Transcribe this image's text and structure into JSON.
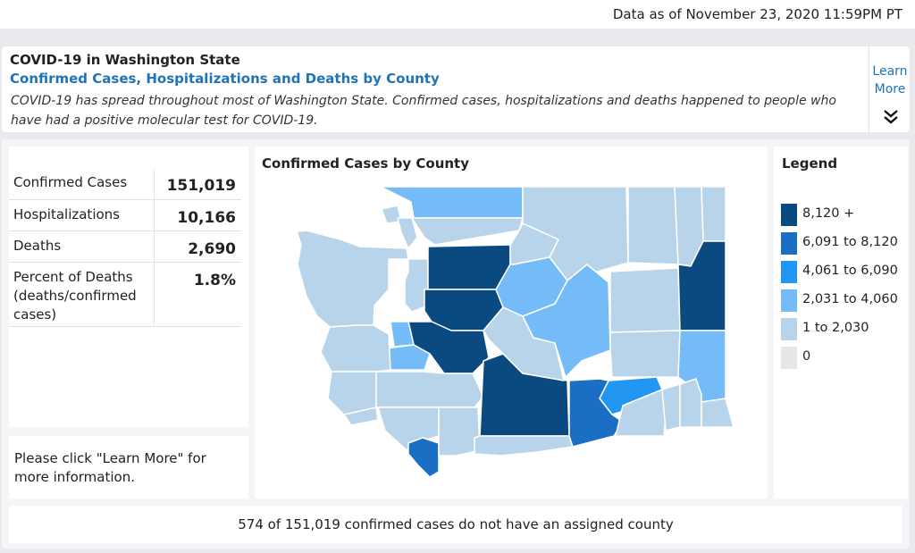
{
  "as_of": "Data as of November 23, 2020 11:59PM PT",
  "info": {
    "title": "COVID-19 in Washington State",
    "subtitle": "Confirmed Cases, Hospitalizations and Deaths by County",
    "description": "COVID-19 has spread throughout most of Washington State. Confirmed cases, hospitalizations and deaths happened to people who have had a positive molecular test for COVID-19.",
    "learn_more": "Learn More",
    "expand_icon": "double-chevron-down-icon"
  },
  "stats": [
    {
      "label": "Confirmed Cases",
      "value": "151,019"
    },
    {
      "label": "Hospitalizations",
      "value": "10,166"
    },
    {
      "label": "Deaths",
      "value": "2,690"
    },
    {
      "label": "Percent of Deaths (deaths/confirmed cases)",
      "value": "1.8%"
    }
  ],
  "note": "Please click \"Learn More\" for more information.",
  "map": {
    "title": "Confirmed Cases by County"
  },
  "legend": {
    "title": "Legend",
    "items": [
      {
        "label": "8,120 +",
        "color": "#0b4a80"
      },
      {
        "label": "6,091 to 8,120",
        "color": "#1a6fc4"
      },
      {
        "label": "4,061 to 6,090",
        "color": "#2196f3"
      },
      {
        "label": "2,031 to 4,060",
        "color": "#74bbf7"
      },
      {
        "label": "1 to 2,030",
        "color": "#b8d4ea"
      },
      {
        "label": "0",
        "color": "#e6e7e9"
      }
    ]
  },
  "footer": "574 of 151,019 confirmed cases do not have an assigned county"
}
